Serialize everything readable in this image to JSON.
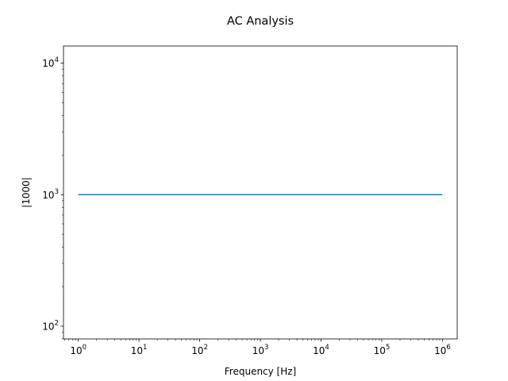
{
  "chart_data": {
    "type": "line",
    "title": "AC Analysis",
    "xlabel": "Frequency [Hz]",
    "ylabel": "|1000|",
    "xscale": "log",
    "yscale": "log",
    "xlim": [
      0.57,
      1750000
    ],
    "ylim": [
      80,
      13500
    ],
    "grid": false,
    "legend": "none",
    "x_ticks": [
      {
        "value": 1,
        "base": "10",
        "exp": "0"
      },
      {
        "value": 10,
        "base": "10",
        "exp": "1"
      },
      {
        "value": 100,
        "base": "10",
        "exp": "2"
      },
      {
        "value": 1000,
        "base": "10",
        "exp": "3"
      },
      {
        "value": 10000,
        "base": "10",
        "exp": "4"
      },
      {
        "value": 100000,
        "base": "10",
        "exp": "5"
      },
      {
        "value": 1000000,
        "base": "10",
        "exp": "6"
      }
    ],
    "y_ticks": [
      {
        "value": 100,
        "base": "10",
        "exp": "2"
      },
      {
        "value": 1000,
        "base": "10",
        "exp": "3"
      },
      {
        "value": 10000,
        "base": "10",
        "exp": "4"
      }
    ],
    "series": [
      {
        "color": "#1f77b4",
        "x": [
          1,
          1000000
        ],
        "y": [
          1000,
          1000
        ]
      }
    ]
  }
}
